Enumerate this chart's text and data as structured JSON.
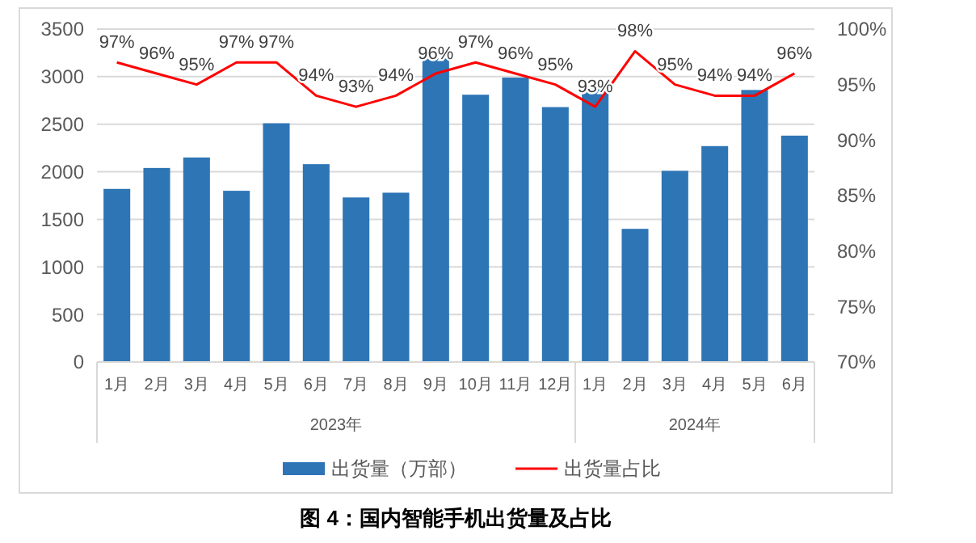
{
  "chart_data": {
    "type": "bar",
    "title": "图 4：国内智能手机出货量及占比",
    "categories": [
      "1月",
      "2月",
      "3月",
      "4月",
      "5月",
      "6月",
      "7月",
      "8月",
      "9月",
      "10月",
      "11月",
      "12月",
      "1月",
      "2月",
      "3月",
      "4月",
      "5月",
      "6月"
    ],
    "series": [
      {
        "name": "出货量（万部）",
        "color": "#2e75b6",
        "values": [
          1820,
          2040,
          2150,
          1800,
          2510,
          2080,
          1730,
          1780,
          3190,
          2810,
          2990,
          2680,
          2880,
          1400,
          2010,
          2270,
          2860,
          2380
        ]
      },
      {
        "name": "出货量占比",
        "type": "line",
        "axis": "y2",
        "color": "#ff0000",
        "marker": "none",
        "data_labels": true,
        "value_labels": [
          "97%",
          "96%",
          "95%",
          "97%",
          "97%",
          "94%",
          "93%",
          "94%",
          "96%",
          "97%",
          "96%",
          "95%",
          "93%",
          "98%",
          "95%",
          "94%",
          "94%",
          "96%"
        ],
        "values": [
          97,
          96,
          95,
          97,
          97,
          94,
          93,
          94,
          96,
          97,
          96,
          95,
          93,
          98,
          95,
          94,
          94,
          96
        ]
      }
    ],
    "ylim": [
      0,
      3500
    ],
    "yticks": [
      0,
      500,
      1000,
      1500,
      2000,
      2500,
      3000,
      3500
    ],
    "y2lim": [
      70,
      100
    ],
    "y2ticks": [
      {
        "value": 70,
        "label": "70%"
      },
      {
        "value": 75,
        "label": "75%"
      },
      {
        "value": 80,
        "label": "80%"
      },
      {
        "value": 85,
        "label": "85%"
      },
      {
        "value": 90,
        "label": "90%"
      },
      {
        "value": 95,
        "label": "95%"
      },
      {
        "value": 100,
        "label": "100%"
      }
    ],
    "annotations": [
      "2023年",
      "2024年"
    ],
    "grid": "y",
    "legend": "bottom"
  }
}
